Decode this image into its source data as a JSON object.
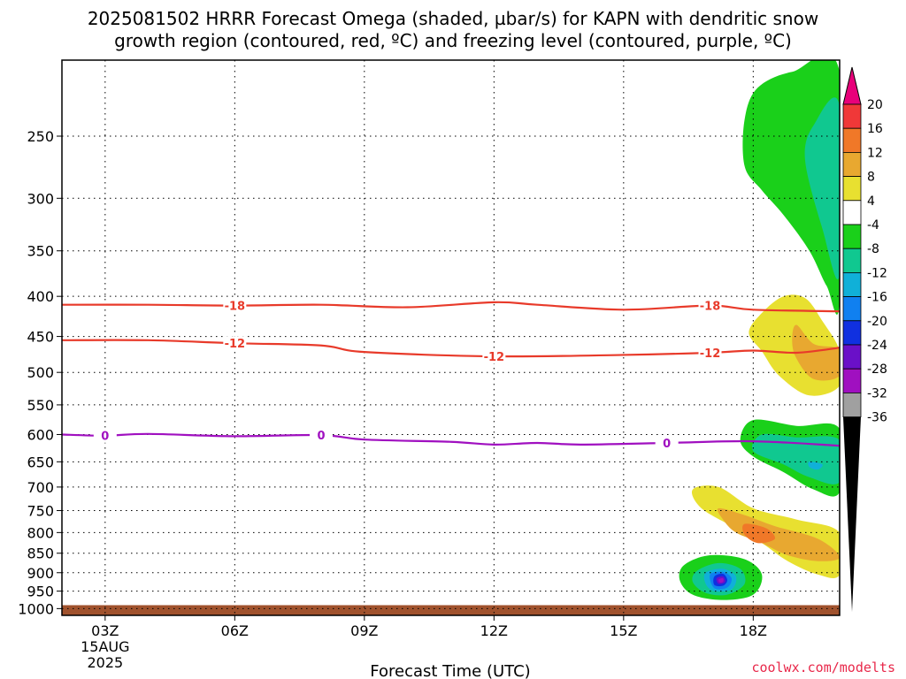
{
  "chart_data": {
    "type": "area",
    "title_line1": "2025081502 HRRR Forecast Omega (shaded, µbar/s) for KAPN with dendritic snow",
    "title_line2": "growth region (contoured, red, ºC) and freezing level (contoured, purple, ºC)",
    "xlabel": "Forecast Time (UTC)",
    "credit": "coolwx.com/modelts",
    "x_ticks": [
      "03Z",
      "06Z",
      "09Z",
      "12Z",
      "15Z",
      "18Z"
    ],
    "x_tick_sub": [
      "15AUG",
      "2025"
    ],
    "x_range_hours": [
      2,
      20
    ],
    "y_ticks": [
      250,
      300,
      350,
      400,
      450,
      500,
      550,
      600,
      650,
      700,
      750,
      800,
      850,
      900,
      950,
      1000
    ],
    "y_range_mb": [
      200,
      1020
    ],
    "y_scale": "log",
    "grid": true,
    "colorbar": {
      "labels": [
        "20",
        "16",
        "12",
        "8",
        "4",
        "-4",
        "-8",
        "-12",
        "-16",
        "-20",
        "-24",
        "-28",
        "-32",
        "-36"
      ],
      "colors": [
        "#e8007a",
        "#f03838",
        "#f07828",
        "#e8a830",
        "#e8e030",
        "#ffffff",
        "#1ad01a",
        "#10c890",
        "#10b0d8",
        "#1080f0",
        "#1030e0",
        "#6a10c8",
        "#a010c0",
        "#a0a0a0"
      ],
      "top_arrow_color": "#e8007a",
      "bottom_arrow_color": "#000000"
    },
    "contours": [
      {
        "label": "-18",
        "color": "#e83a2a",
        "points": [
          [
            2,
            410
          ],
          [
            4,
            410
          ],
          [
            6,
            411
          ],
          [
            8,
            410
          ],
          [
            10,
            413
          ],
          [
            12,
            407
          ],
          [
            13,
            410
          ],
          [
            15,
            416
          ],
          [
            17,
            411
          ],
          [
            18,
            416
          ],
          [
            20,
            418
          ]
        ],
        "label_at": [
          6,
          17
        ]
      },
      {
        "label": "-12",
        "color": "#e83a2a",
        "points": [
          [
            2,
            455
          ],
          [
            4,
            455
          ],
          [
            6,
            459
          ],
          [
            8,
            462
          ],
          [
            9,
            471
          ],
          [
            12,
            477
          ],
          [
            15,
            475
          ],
          [
            17,
            472
          ],
          [
            18,
            469
          ],
          [
            19,
            472
          ],
          [
            20,
            465
          ]
        ],
        "label_at": [
          6,
          12,
          17
        ]
      },
      {
        "label": "0",
        "color": "#a010c0",
        "points": [
          [
            2,
            600
          ],
          [
            3,
            602
          ],
          [
            4,
            599
          ],
          [
            6,
            603
          ],
          [
            8,
            601
          ],
          [
            9,
            609
          ],
          [
            11,
            613
          ],
          [
            12,
            618
          ],
          [
            13,
            615
          ],
          [
            14,
            618
          ],
          [
            16,
            615
          ],
          [
            18,
            612
          ],
          [
            20,
            620
          ]
        ],
        "label_at": [
          3,
          8,
          16
        ]
      }
    ],
    "ground_mb": 990,
    "ground_color": "#a0522d",
    "omega_areas": [
      {
        "value": -6,
        "color": "#1ad01a",
        "points": [
          [
            18.9,
            207
          ],
          [
            20,
            207
          ],
          [
            20,
            405
          ],
          [
            19.7,
            388
          ],
          [
            19.3,
            350
          ],
          [
            18.7,
            315
          ],
          [
            18.2,
            293
          ],
          [
            17.8,
            273
          ],
          [
            17.8,
            238
          ],
          [
            18.1,
            217
          ]
        ]
      },
      {
        "value": -10,
        "color": "#10c890",
        "points": [
          [
            20,
            229
          ],
          [
            20,
            375
          ],
          [
            19.6,
            328
          ],
          [
            19.2,
            268
          ],
          [
            19.4,
            242
          ]
        ]
      },
      {
        "value": 6,
        "color": "#e8e030",
        "points": [
          [
            18.7,
            400
          ],
          [
            19.2,
            402
          ],
          [
            19.6,
            430
          ],
          [
            20,
            470
          ],
          [
            20,
            520
          ],
          [
            19.3,
            535
          ],
          [
            18.6,
            505
          ],
          [
            18.2,
            470
          ],
          [
            17.9,
            445
          ],
          [
            18.2,
            420
          ]
        ]
      },
      {
        "value": 10,
        "color": "#e8a830",
        "points": [
          [
            19.0,
            435
          ],
          [
            19.4,
            460
          ],
          [
            20,
            468
          ],
          [
            20,
            505
          ],
          [
            19.4,
            510
          ],
          [
            19.0,
            480
          ],
          [
            18.9,
            455
          ]
        ]
      },
      {
        "value": -6,
        "color": "#1ad01a",
        "points": [
          [
            18.0,
            575
          ],
          [
            19.0,
            585
          ],
          [
            20,
            590
          ],
          [
            20,
            710
          ],
          [
            19.4,
            705
          ],
          [
            18.7,
            670
          ],
          [
            18.0,
            640
          ],
          [
            17.7,
            610
          ]
        ]
      },
      {
        "value": -10,
        "color": "#10c890",
        "points": [
          [
            18.2,
            600
          ],
          [
            19.0,
            605
          ],
          [
            20,
            610
          ],
          [
            20,
            690
          ],
          [
            19.3,
            680
          ],
          [
            18.7,
            655
          ],
          [
            18.0,
            630
          ]
        ]
      },
      {
        "value": -14,
        "color": "#10b0d8",
        "points": [
          [
            19.3,
            650
          ],
          [
            19.6,
            655
          ],
          [
            19.5,
            665
          ],
          [
            19.3,
            660
          ]
        ]
      },
      {
        "value": 6,
        "color": "#e8e030",
        "points": [
          [
            16.6,
            705
          ],
          [
            17.2,
            700
          ],
          [
            18.0,
            745
          ],
          [
            19.0,
            770
          ],
          [
            20,
            800
          ],
          [
            20,
            905
          ],
          [
            19.5,
            905
          ],
          [
            18.8,
            870
          ],
          [
            18.2,
            825
          ],
          [
            17.6,
            790
          ],
          [
            16.8,
            745
          ]
        ]
      },
      {
        "value": 10,
        "color": "#e8a830",
        "points": [
          [
            17.2,
            745
          ],
          [
            17.8,
            760
          ],
          [
            18.5,
            785
          ],
          [
            19.5,
            815
          ],
          [
            20,
            860
          ],
          [
            19.5,
            870
          ],
          [
            18.8,
            855
          ],
          [
            18.2,
            825
          ],
          [
            17.6,
            800
          ],
          [
            17.3,
            770
          ]
        ]
      },
      {
        "value": 14,
        "color": "#f07828",
        "points": [
          [
            17.8,
            780
          ],
          [
            18.3,
            790
          ],
          [
            18.5,
            815
          ],
          [
            18.1,
            825
          ],
          [
            17.8,
            805
          ]
        ]
      },
      {
        "value": -6,
        "color": "#1ad01a",
        "points": [
          [
            16.4,
            880
          ],
          [
            17.0,
            855
          ],
          [
            17.8,
            865
          ],
          [
            18.2,
            905
          ],
          [
            18.0,
            960
          ],
          [
            17.3,
            975
          ],
          [
            16.6,
            960
          ],
          [
            16.3,
            920
          ]
        ]
      },
      {
        "value": -10,
        "color": "#10c890",
        "points": [
          [
            16.7,
            895
          ],
          [
            17.2,
            875
          ],
          [
            17.7,
            890
          ],
          [
            17.8,
            930
          ],
          [
            17.4,
            960
          ],
          [
            16.9,
            955
          ],
          [
            16.6,
            925
          ]
        ]
      },
      {
        "value": -14,
        "color": "#10b0d8",
        "points": [
          [
            16.9,
            900
          ],
          [
            17.3,
            890
          ],
          [
            17.6,
            910
          ],
          [
            17.5,
            945
          ],
          [
            17.1,
            950
          ],
          [
            16.9,
            930
          ]
        ]
      },
      {
        "value": -18,
        "color": "#1080f0",
        "points": [
          [
            17.0,
            905
          ],
          [
            17.3,
            898
          ],
          [
            17.5,
            915
          ],
          [
            17.4,
            940
          ],
          [
            17.1,
            942
          ]
        ]
      },
      {
        "value": -22,
        "color": "#1030e0",
        "points": [
          [
            17.1,
            910
          ],
          [
            17.3,
            903
          ],
          [
            17.4,
            920
          ],
          [
            17.3,
            935
          ],
          [
            17.1,
            933
          ]
        ]
      },
      {
        "value": -26,
        "color": "#6a10c8",
        "points": [
          [
            17.15,
            915
          ],
          [
            17.3,
            910
          ],
          [
            17.35,
            925
          ],
          [
            17.2,
            930
          ]
        ]
      },
      {
        "value": -30,
        "color": "#a010c0",
        "points": [
          [
            17.2,
            918
          ],
          [
            17.3,
            915
          ],
          [
            17.3,
            925
          ],
          [
            17.22,
            926
          ]
        ]
      }
    ]
  }
}
